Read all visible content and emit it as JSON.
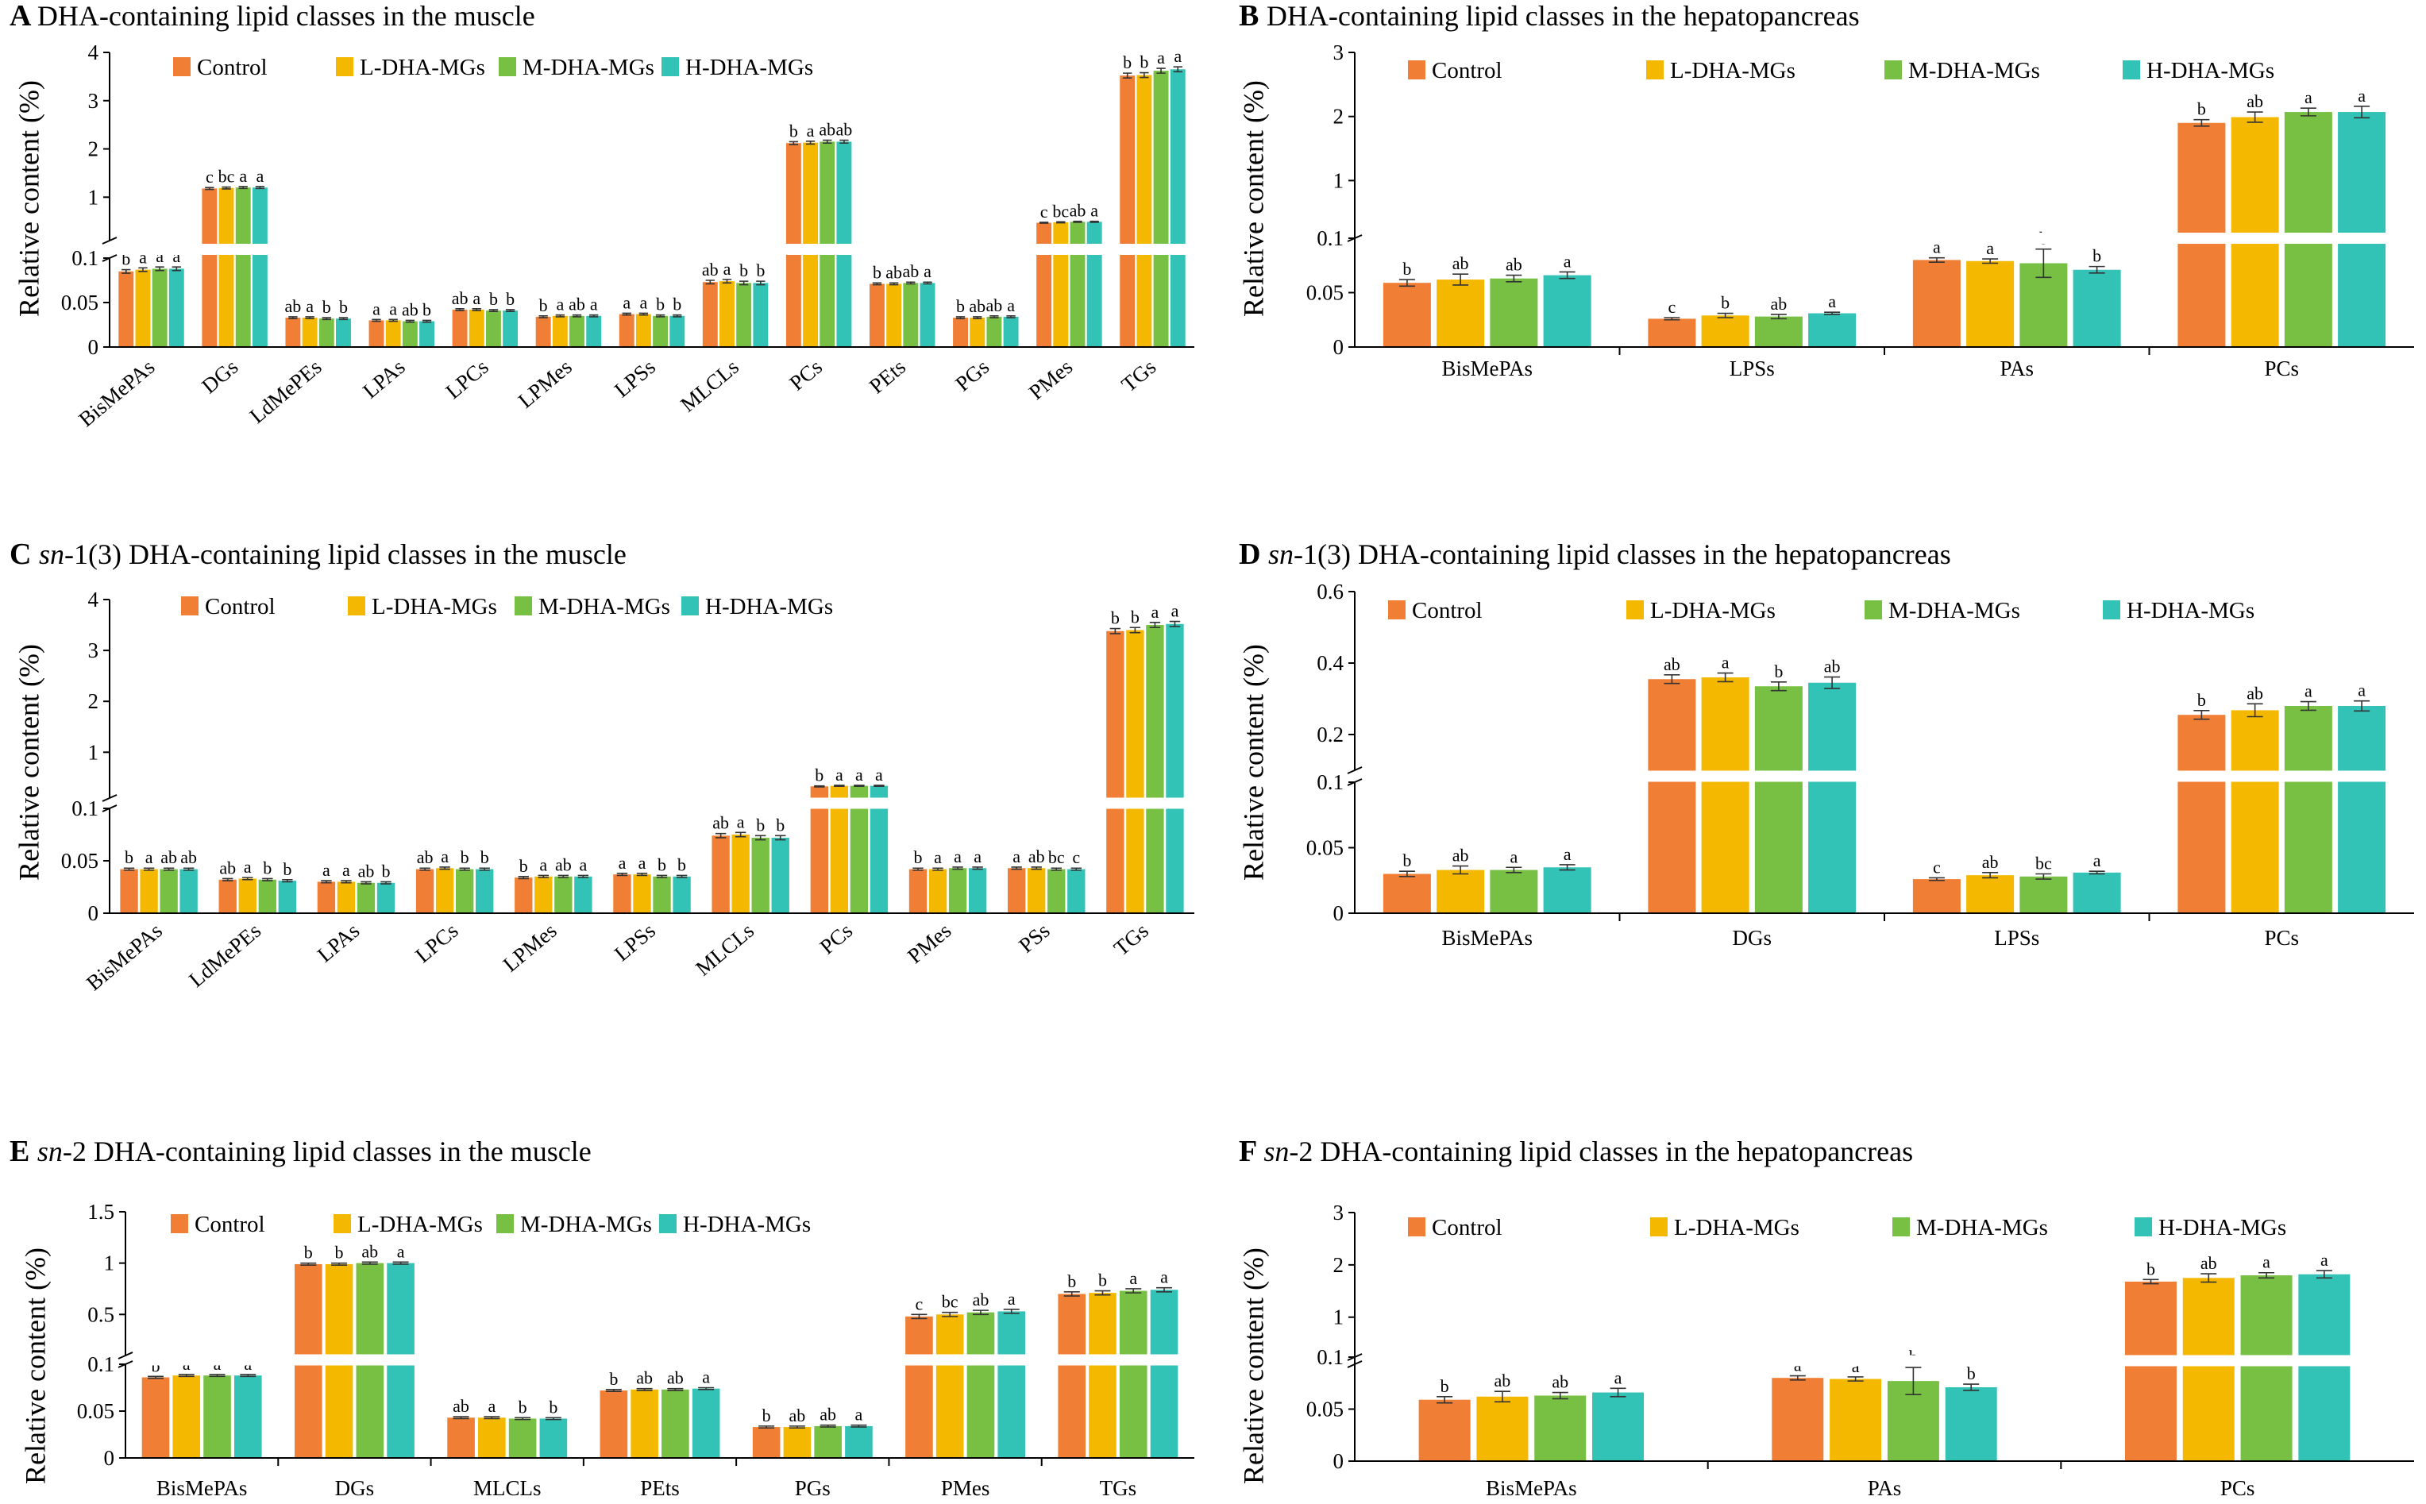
{
  "colors": {
    "Control": "#F07F35",
    "L-DHA-MGs": "#F5B800",
    "M-DHA-MGs": "#78C043",
    "H-DHA-MGs": "#33C2B6"
  },
  "chart_data": [
    {
      "id": "A",
      "type": "bar",
      "panel_letter": "A",
      "title": "DHA-containing lipid classes in the muscle",
      "title_italic_prefix": "",
      "ylabel": "Relative content (%)",
      "legend": [
        "Control",
        "L-DHA-MGs",
        "M-DHA-MGs",
        "H-DHA-MGs"
      ],
      "y_break": {
        "lower": [
          0,
          0.1
        ],
        "upper": [
          0.1,
          4
        ]
      },
      "lower_ticks": [
        "0",
        "0.05",
        "0.1"
      ],
      "upper_ticks": [
        "1",
        "2",
        "3",
        "4"
      ],
      "x_labels_rotated": true,
      "x_label_ticks": false,
      "categories": [
        "BisMePAs",
        "DGs",
        "LdMePEs",
        "LPAs",
        "LPCs",
        "LPMes",
        "LPSs",
        "MLCLs",
        "PCs",
        "PEts",
        "PGs",
        "PMes",
        "TGs"
      ],
      "series": [
        {
          "name": "Control",
          "values": [
            0.085,
            1.18,
            0.033,
            0.03,
            0.042,
            0.034,
            0.037,
            0.073,
            2.12,
            0.071,
            0.033,
            0.47,
            3.52
          ],
          "errors": [
            0.002,
            0.02,
            0.001,
            0.001,
            0.001,
            0.001,
            0.001,
            0.002,
            0.03,
            0.001,
            0.001,
            0.01,
            0.05
          ]
        },
        {
          "name": "L-DHA-MGs",
          "values": [
            0.087,
            1.19,
            0.033,
            0.03,
            0.042,
            0.035,
            0.037,
            0.074,
            2.13,
            0.071,
            0.033,
            0.48,
            3.53
          ],
          "errors": [
            0.002,
            0.02,
            0.001,
            0.001,
            0.001,
            0.001,
            0.001,
            0.002,
            0.03,
            0.001,
            0.001,
            0.01,
            0.05
          ]
        },
        {
          "name": "M-DHA-MGs",
          "values": [
            0.088,
            1.2,
            0.032,
            0.029,
            0.041,
            0.035,
            0.035,
            0.072,
            2.15,
            0.072,
            0.034,
            0.49,
            3.62
          ],
          "errors": [
            0.002,
            0.02,
            0.001,
            0.001,
            0.001,
            0.001,
            0.001,
            0.002,
            0.03,
            0.001,
            0.001,
            0.01,
            0.05
          ]
        },
        {
          "name": "H-DHA-MGs",
          "values": [
            0.088,
            1.2,
            0.032,
            0.029,
            0.041,
            0.035,
            0.035,
            0.072,
            2.15,
            0.072,
            0.034,
            0.49,
            3.65
          ],
          "errors": [
            0.002,
            0.02,
            0.001,
            0.001,
            0.001,
            0.001,
            0.001,
            0.002,
            0.03,
            0.001,
            0.001,
            0.01,
            0.05
          ]
        }
      ],
      "significance": [
        [
          "b",
          "a",
          "a",
          "a"
        ],
        [
          "c",
          "bc",
          "a",
          "a"
        ],
        [
          "ab",
          "a",
          "b",
          "b"
        ],
        [
          "a",
          "a",
          "ab",
          "b"
        ],
        [
          "ab",
          "a",
          "b",
          "b"
        ],
        [
          "b",
          "a",
          "ab",
          "a"
        ],
        [
          "a",
          "a",
          "b",
          "b"
        ],
        [
          "ab",
          "a",
          "b",
          "b"
        ],
        [
          "b",
          "a",
          "ab",
          "ab"
        ],
        [
          "b",
          "ab",
          "ab",
          "a"
        ],
        [
          "b",
          "ab",
          "ab",
          "a"
        ],
        [
          "c",
          "bc",
          "ab",
          "a"
        ],
        [
          "b",
          "b",
          "a",
          "a"
        ]
      ]
    },
    {
      "id": "B",
      "type": "bar",
      "panel_letter": "B",
      "title": "DHA-containing lipid classes in the hepatopancreas",
      "title_italic_prefix": "",
      "ylabel": "Relative content (%)",
      "legend": [
        "Control",
        "L-DHA-MGs",
        "M-DHA-MGs",
        "H-DHA-MGs"
      ],
      "y_break": {
        "lower": [
          0,
          0.1
        ],
        "upper": [
          0.1,
          3
        ]
      },
      "lower_ticks": [
        "0",
        "0.05",
        "0.1"
      ],
      "upper_ticks": [
        "1",
        "2",
        "3"
      ],
      "x_labels_rotated": false,
      "x_label_ticks": true,
      "categories": [
        "BisMePAs",
        "LPSs",
        "PAs",
        "PCs"
      ],
      "series": [
        {
          "name": "Control",
          "values": [
            0.059,
            0.026,
            0.08,
            1.9
          ],
          "errors": [
            0.003,
            0.001,
            0.002,
            0.05
          ]
        },
        {
          "name": "L-DHA-MGs",
          "values": [
            0.062,
            0.029,
            0.079,
            1.99
          ],
          "errors": [
            0.005,
            0.002,
            0.002,
            0.08
          ]
        },
        {
          "name": "M-DHA-MGs",
          "values": [
            0.063,
            0.028,
            0.077,
            2.07
          ],
          "errors": [
            0.003,
            0.002,
            0.013,
            0.06
          ]
        },
        {
          "name": "H-DHA-MGs",
          "values": [
            0.066,
            0.031,
            0.071,
            2.07
          ],
          "errors": [
            0.003,
            0.001,
            0.003,
            0.09
          ]
        }
      ],
      "significance": [
        [
          "b",
          "ab",
          "ab",
          "a"
        ],
        [
          "c",
          "b",
          "ab",
          "a"
        ],
        [
          "a",
          "a",
          "b",
          "b"
        ],
        [
          "b",
          "ab",
          "a",
          "a"
        ]
      ]
    },
    {
      "id": "C",
      "type": "bar",
      "panel_letter": "C",
      "title": " DHA-containing lipid classes in the muscle",
      "title_italic_prefix": "sn",
      "title_plain_after_prefix": "-1(3)",
      "ylabel": "Relative content (%)",
      "legend": [
        "Control",
        "L-DHA-MGs",
        "M-DHA-MGs",
        "H-DHA-MGs"
      ],
      "y_break": {
        "lower": [
          0,
          0.1
        ],
        "upper": [
          0.1,
          4
        ]
      },
      "lower_ticks": [
        "0",
        "0.05",
        "0.1"
      ],
      "upper_ticks": [
        "1",
        "2",
        "3",
        "4"
      ],
      "x_labels_rotated": true,
      "x_label_ticks": false,
      "categories": [
        "BisMePAs",
        "LdMePEs",
        "LPAs",
        "LPCs",
        "LPMes",
        "LPSs",
        "MLCLs",
        "PCs",
        "PMes",
        "PSs",
        "TGs"
      ],
      "series": [
        {
          "name": "Control",
          "values": [
            0.042,
            0.032,
            0.03,
            0.042,
            0.034,
            0.037,
            0.074,
            0.33,
            0.042,
            0.043,
            3.38
          ],
          "errors": [
            0.001,
            0.001,
            0.001,
            0.001,
            0.001,
            0.001,
            0.002,
            0.01,
            0.001,
            0.001,
            0.05
          ]
        },
        {
          "name": "L-DHA-MGs",
          "values": [
            0.042,
            0.033,
            0.03,
            0.043,
            0.035,
            0.037,
            0.075,
            0.34,
            0.042,
            0.043,
            3.4
          ],
          "errors": [
            0.001,
            0.001,
            0.001,
            0.001,
            0.001,
            0.001,
            0.002,
            0.01,
            0.001,
            0.001,
            0.05
          ]
        },
        {
          "name": "M-DHA-MGs",
          "values": [
            0.042,
            0.032,
            0.029,
            0.042,
            0.035,
            0.035,
            0.072,
            0.34,
            0.043,
            0.042,
            3.5
          ],
          "errors": [
            0.001,
            0.001,
            0.001,
            0.001,
            0.001,
            0.001,
            0.002,
            0.01,
            0.001,
            0.001,
            0.05
          ]
        },
        {
          "name": "H-DHA-MGs",
          "values": [
            0.042,
            0.031,
            0.029,
            0.042,
            0.035,
            0.035,
            0.072,
            0.34,
            0.043,
            0.042,
            3.52
          ],
          "errors": [
            0.001,
            0.001,
            0.001,
            0.001,
            0.001,
            0.001,
            0.002,
            0.01,
            0.001,
            0.001,
            0.05
          ]
        }
      ],
      "significance": [
        [
          "b",
          "a",
          "ab",
          "ab"
        ],
        [
          "ab",
          "a",
          "b",
          "b"
        ],
        [
          "a",
          "a",
          "ab",
          "b"
        ],
        [
          "ab",
          "a",
          "b",
          "b"
        ],
        [
          "b",
          "a",
          "ab",
          "a"
        ],
        [
          "a",
          "a",
          "b",
          "b"
        ],
        [
          "ab",
          "a",
          "b",
          "b"
        ],
        [
          "b",
          "a",
          "a",
          "a"
        ],
        [
          "b",
          "a",
          "a",
          "a"
        ],
        [
          "a",
          "ab",
          "bc",
          "c"
        ],
        [
          "b",
          "b",
          "a",
          "a"
        ]
      ]
    },
    {
      "id": "D",
      "type": "bar",
      "panel_letter": "D",
      "title": " DHA-containing lipid classes in the hepatopancreas",
      "title_italic_prefix": "sn",
      "title_plain_after_prefix": "-1(3)",
      "ylabel": "Relative content (%)",
      "legend": [
        "Control",
        "L-DHA-MGs",
        "M-DHA-MGs",
        "H-DHA-MGs"
      ],
      "y_break": {
        "lower": [
          0,
          0.1
        ],
        "upper": [
          0.1,
          0.6
        ]
      },
      "lower_ticks": [
        "0",
        "0.05",
        "0.1"
      ],
      "upper_ticks": [
        "0.2",
        "0.4",
        "0.6"
      ],
      "x_labels_rotated": false,
      "x_label_ticks": true,
      "categories": [
        "BisMePAs",
        "DGs",
        "LPSs",
        "PCs"
      ],
      "series": [
        {
          "name": "Control",
          "values": [
            0.03,
            0.355,
            0.026,
            0.255
          ],
          "errors": [
            0.002,
            0.012,
            0.001,
            0.012
          ]
        },
        {
          "name": "L-DHA-MGs",
          "values": [
            0.033,
            0.36,
            0.029,
            0.268
          ],
          "errors": [
            0.003,
            0.012,
            0.002,
            0.018
          ]
        },
        {
          "name": "M-DHA-MGs",
          "values": [
            0.033,
            0.335,
            0.028,
            0.28
          ],
          "errors": [
            0.002,
            0.012,
            0.002,
            0.012
          ]
        },
        {
          "name": "H-DHA-MGs",
          "values": [
            0.035,
            0.345,
            0.031,
            0.28
          ],
          "errors": [
            0.002,
            0.016,
            0.001,
            0.014
          ]
        }
      ],
      "significance": [
        [
          "b",
          "ab",
          "a",
          "a"
        ],
        [
          "ab",
          "a",
          "b",
          "ab"
        ],
        [
          "c",
          "ab",
          "bc",
          "a"
        ],
        [
          "b",
          "ab",
          "a",
          "a"
        ]
      ]
    },
    {
      "id": "E",
      "type": "bar",
      "panel_letter": "E",
      "title": " DHA-containing lipid classes in the muscle",
      "title_italic_prefix": "sn",
      "title_plain_after_prefix": "-2",
      "ylabel": "Relative content (%)",
      "legend": [
        "Control",
        "L-DHA-MGs",
        "M-DHA-MGs",
        "H-DHA-MGs"
      ],
      "y_break": {
        "lower": [
          0,
          0.1
        ],
        "upper": [
          0.1,
          1.5
        ]
      },
      "lower_ticks": [
        "0",
        "0.05",
        "0.1"
      ],
      "upper_ticks": [
        "0.5",
        "1",
        "1.5"
      ],
      "x_labels_rotated": false,
      "x_label_ticks": true,
      "categories": [
        "BisMePAs",
        "DGs",
        "MLCLs",
        "PEts",
        "PGs",
        "PMes",
        "TGs"
      ],
      "series": [
        {
          "name": "Control",
          "values": [
            0.086,
            0.99,
            0.043,
            0.072,
            0.033,
            0.48,
            0.7
          ],
          "errors": [
            0.001,
            0.01,
            0.001,
            0.001,
            0.001,
            0.02,
            0.02
          ]
        },
        {
          "name": "L-DHA-MGs",
          "values": [
            0.088,
            0.99,
            0.043,
            0.073,
            0.033,
            0.5,
            0.71
          ],
          "errors": [
            0.001,
            0.01,
            0.001,
            0.001,
            0.001,
            0.02,
            0.02
          ]
        },
        {
          "name": "M-DHA-MGs",
          "values": [
            0.088,
            1.0,
            0.042,
            0.073,
            0.034,
            0.52,
            0.73
          ],
          "errors": [
            0.001,
            0.01,
            0.001,
            0.001,
            0.001,
            0.02,
            0.02
          ]
        },
        {
          "name": "H-DHA-MGs",
          "values": [
            0.088,
            1.0,
            0.042,
            0.074,
            0.034,
            0.53,
            0.74
          ],
          "errors": [
            0.001,
            0.01,
            0.001,
            0.001,
            0.001,
            0.02,
            0.02
          ]
        }
      ],
      "significance": [
        [
          "b",
          "a",
          "a",
          "a"
        ],
        [
          "b",
          "b",
          "ab",
          "a"
        ],
        [
          "ab",
          "a",
          "b",
          "b"
        ],
        [
          "b",
          "ab",
          "ab",
          "a"
        ],
        [
          "b",
          "ab",
          "ab",
          "a"
        ],
        [
          "c",
          "bc",
          "ab",
          "a"
        ],
        [
          "b",
          "b",
          "a",
          "a"
        ]
      ]
    },
    {
      "id": "F",
      "type": "bar",
      "panel_letter": "F",
      "title": " DHA-containing lipid classes in the hepatopancreas",
      "title_italic_prefix": "sn",
      "title_plain_after_prefix": "-2",
      "ylabel": "Relative content (%)",
      "legend": [
        "Control",
        "L-DHA-MGs",
        "M-DHA-MGs",
        "H-DHA-MGs"
      ],
      "y_break": {
        "lower": [
          0,
          0.1
        ],
        "upper": [
          0.1,
          3
        ]
      },
      "lower_ticks": [
        "0",
        "0.05",
        "0.1"
      ],
      "upper_ticks": [
        "1",
        "2",
        "3"
      ],
      "x_labels_rotated": false,
      "x_label_ticks": true,
      "categories": [
        "BisMePAs",
        "PAs",
        "PCs"
      ],
      "series": [
        {
          "name": "Control",
          "values": [
            0.059,
            0.08,
            1.68
          ],
          "errors": [
            0.003,
            0.002,
            0.04
          ]
        },
        {
          "name": "L-DHA-MGs",
          "values": [
            0.062,
            0.079,
            1.75
          ],
          "errors": [
            0.005,
            0.002,
            0.08
          ]
        },
        {
          "name": "M-DHA-MGs",
          "values": [
            0.063,
            0.077,
            1.8
          ],
          "errors": [
            0.003,
            0.013,
            0.05
          ]
        },
        {
          "name": "H-DHA-MGs",
          "values": [
            0.066,
            0.071,
            1.82
          ],
          "errors": [
            0.004,
            0.003,
            0.07
          ]
        }
      ],
      "significance": [
        [
          "b",
          "ab",
          "ab",
          "a"
        ],
        [
          "a",
          "a",
          "b",
          "b"
        ],
        [
          "b",
          "ab",
          "a",
          "a"
        ]
      ]
    }
  ]
}
